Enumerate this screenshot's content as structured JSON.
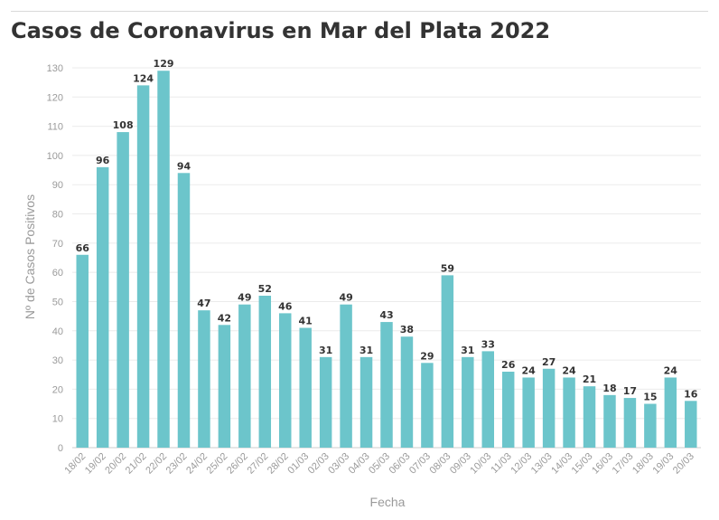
{
  "chart_data": {
    "type": "bar",
    "title": "Casos de Coronavirus en Mar del Plata 2022",
    "xlabel": "Fecha",
    "ylabel": "Nº de Casos Positivos",
    "ylim": [
      0,
      130
    ],
    "yticks": [
      0,
      10,
      20,
      30,
      40,
      50,
      60,
      70,
      80,
      90,
      100,
      110,
      120,
      130
    ],
    "grid": true,
    "bar_color": "#6cc5cb",
    "categories": [
      "18/02",
      "19/02",
      "20/02",
      "21/02",
      "22/02",
      "23/02",
      "24/02",
      "25/02",
      "26/02",
      "27/02",
      "28/02",
      "01/03",
      "02/03",
      "03/03",
      "04/03",
      "05/03",
      "06/03",
      "07/03",
      "08/03",
      "09/03",
      "10/03",
      "11/03",
      "12/03",
      "13/03",
      "14/03",
      "15/03",
      "16/03",
      "17/03",
      "18/03",
      "19/03",
      "20/03"
    ],
    "values": [
      66,
      96,
      108,
      124,
      129,
      94,
      47,
      42,
      49,
      52,
      46,
      41,
      31,
      49,
      31,
      43,
      38,
      29,
      59,
      31,
      33,
      26,
      24,
      27,
      24,
      21,
      18,
      17,
      15,
      24,
      16
    ]
  }
}
